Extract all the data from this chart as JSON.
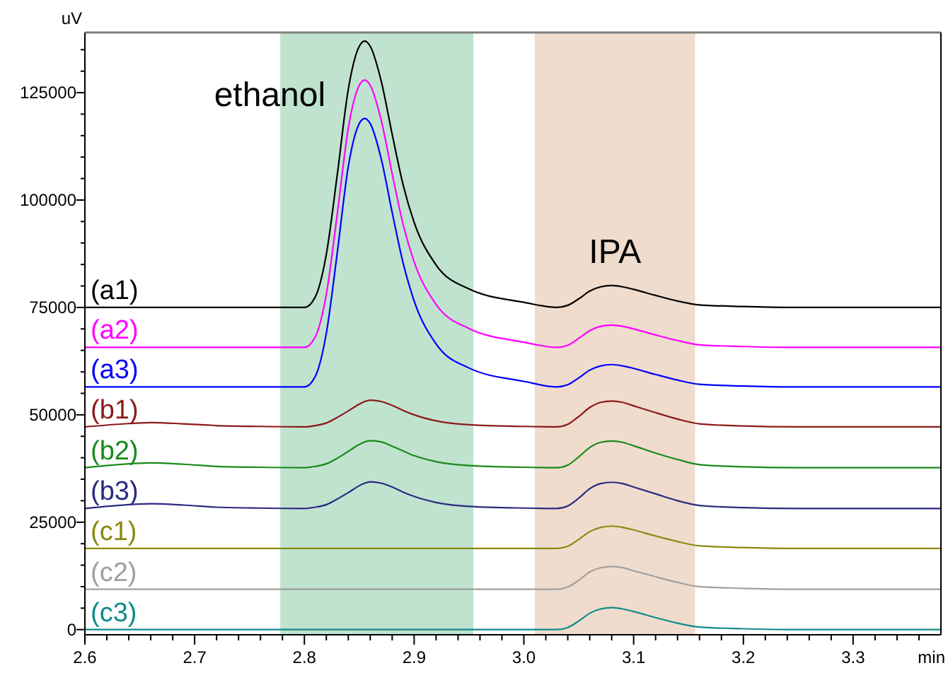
{
  "chart_data": {
    "type": "line",
    "xlabel": "min",
    "ylabel": "uV",
    "xlim": [
      2.6,
      3.38
    ],
    "ylim": [
      -1200,
      139000
    ],
    "xticks": [
      2.6,
      {
        "value": 2.62,
        "label": null
      },
      {
        "value": 2.64,
        "label": null
      },
      {
        "value": 2.66,
        "label": null
      },
      {
        "value": 2.68,
        "label": null
      },
      2.7,
      {
        "value": 2.72,
        "label": null
      },
      {
        "value": 2.74,
        "label": null
      },
      {
        "value": 2.76,
        "label": null
      },
      {
        "value": 2.78,
        "label": null
      },
      2.8,
      {
        "value": 2.82,
        "label": null
      },
      {
        "value": 2.84,
        "label": null
      },
      {
        "value": 2.86,
        "label": null
      },
      {
        "value": 2.88,
        "label": null
      },
      2.9,
      {
        "value": 2.92,
        "label": null
      },
      {
        "value": 2.94,
        "label": null
      },
      {
        "value": 2.96,
        "label": null
      },
      {
        "value": 2.98,
        "label": null
      },
      {
        "value": 3,
        "label": "3.0"
      },
      {
        "value": 3.02,
        "label": null
      },
      {
        "value": 3.04,
        "label": null
      },
      {
        "value": 3.06,
        "label": null
      },
      {
        "value": 3.08,
        "label": null
      },
      3.1,
      {
        "value": 3.12,
        "label": null
      },
      {
        "value": 3.14,
        "label": null
      },
      {
        "value": 3.16,
        "label": null
      },
      {
        "value": 3.18,
        "label": null
      },
      3.2,
      {
        "value": 3.22,
        "label": null
      },
      {
        "value": 3.24,
        "label": null
      },
      {
        "value": 3.26,
        "label": null
      },
      {
        "value": 3.28,
        "label": null
      },
      3.3,
      {
        "value": 3.32,
        "label": null
      },
      {
        "value": 3.34,
        "label": null
      },
      {
        "value": 3.36,
        "label": null
      }
    ],
    "yticks": [
      0,
      {
        "value": 5000,
        "label": null
      },
      {
        "value": 10000,
        "label": null
      },
      {
        "value": 15000,
        "label": null
      },
      {
        "value": 20000,
        "label": null
      },
      25000,
      {
        "value": 30000,
        "label": null
      },
      {
        "value": 35000,
        "label": null
      },
      {
        "value": 40000,
        "label": null
      },
      {
        "value": 45000,
        "label": null
      },
      50000,
      {
        "value": 55000,
        "label": null
      },
      {
        "value": 60000,
        "label": null
      },
      {
        "value": 65000,
        "label": null
      },
      {
        "value": 70000,
        "label": null
      },
      75000,
      {
        "value": 80000,
        "label": null
      },
      {
        "value": 85000,
        "label": null
      },
      {
        "value": 90000,
        "label": null
      },
      {
        "value": 95000,
        "label": null
      },
      100000,
      {
        "value": 105000,
        "label": null
      },
      {
        "value": 110000,
        "label": null
      },
      {
        "value": 115000,
        "label": null
      },
      {
        "value": 120000,
        "label": null
      },
      125000,
      {
        "value": 130000,
        "label": null
      },
      {
        "value": 135000,
        "label": null
      }
    ],
    "grid": false,
    "marker": "none",
    "line_style": "solid",
    "bands": [
      {
        "axis": "x",
        "from": 2.778,
        "to": 2.954,
        "label": "ethanol",
        "color": "#c0e3cf"
      },
      {
        "axis": "x",
        "from": 3.01,
        "to": 3.156,
        "label": "IPA",
        "color": "#efdccd"
      }
    ],
    "x": [
      2.6,
      2.63,
      2.66,
      2.69,
      2.72,
      2.76,
      2.8,
      2.81,
      2.82,
      2.83,
      2.84,
      2.85,
      2.855,
      2.86,
      2.87,
      2.88,
      2.89,
      2.9,
      2.92,
      2.95,
      3.0,
      3.03,
      3.04,
      3.05,
      3.06,
      3.07,
      3.08,
      3.09,
      3.1,
      3.12,
      3.14,
      3.16,
      3.2,
      3.25,
      3.3,
      3.38
    ],
    "series": [
      {
        "name": "(a1)",
        "color": "#000000",
        "values": [
          75000,
          75000,
          75000,
          75000,
          75000,
          75000,
          75000,
          77500,
          87400,
          106000,
          125800,
          135800,
          137000,
          135800,
          127700,
          115300,
          103500,
          94800,
          84900,
          79300,
          76200,
          75000,
          75500,
          77000,
          78800,
          79800,
          80100,
          79800,
          79200,
          77800,
          76500,
          75600,
          75200,
          75000,
          75000,
          75000
        ]
      },
      {
        "name": "(a2)",
        "color": "#ff00ff",
        "values": [
          65700,
          65700,
          65700,
          65700,
          65700,
          65700,
          65700,
          68200,
          78100,
          96800,
          116700,
          126700,
          127900,
          126700,
          118600,
          106100,
          94300,
          85600,
          75700,
          70100,
          66900,
          65700,
          66200,
          67800,
          69600,
          70600,
          70900,
          70600,
          70000,
          68600,
          67300,
          66300,
          65900,
          65700,
          65700,
          65700
        ]
      },
      {
        "name": "(a3)",
        "color": "#0000ff",
        "values": [
          56500,
          56500,
          56500,
          56500,
          56500,
          56500,
          56500,
          59000,
          69000,
          87800,
          107800,
          117800,
          119000,
          117800,
          109600,
          97100,
          85300,
          76500,
          66500,
          60900,
          57800,
          56500,
          57000,
          58600,
          60400,
          61400,
          61700,
          61400,
          60800,
          59400,
          58100,
          57100,
          56700,
          56500,
          56500,
          56500
        ]
      },
      {
        "name": "(b1)",
        "color": "#8b1a1a",
        "values": [
          47200,
          47800,
          48200,
          47900,
          47500,
          47300,
          47200,
          47500,
          48100,
          49400,
          50900,
          52500,
          53100,
          53400,
          53100,
          52200,
          51000,
          50000,
          48600,
          47700,
          47300,
          47200,
          47800,
          49600,
          51700,
          52900,
          53200,
          52900,
          52100,
          50500,
          49000,
          47900,
          47400,
          47200,
          47200,
          47200
        ]
      },
      {
        "name": "(b2)",
        "color": "#1a8a1a",
        "values": [
          37700,
          38400,
          38800,
          38500,
          38000,
          37800,
          37700,
          38000,
          38600,
          39900,
          41500,
          43100,
          43700,
          44000,
          43700,
          42700,
          41600,
          40500,
          39100,
          38200,
          37800,
          37700,
          38300,
          40200,
          42400,
          43600,
          43900,
          43600,
          42800,
          41100,
          39600,
          38400,
          37900,
          37700,
          37700,
          37700
        ]
      },
      {
        "name": "(b3)",
        "color": "#2a2a80",
        "values": [
          28200,
          28900,
          29300,
          29000,
          28500,
          28300,
          28200,
          28500,
          29100,
          30400,
          31900,
          33500,
          34100,
          34400,
          34100,
          33200,
          32000,
          31000,
          29600,
          28700,
          28300,
          28200,
          28800,
          30600,
          32800,
          34000,
          34300,
          34000,
          33200,
          31600,
          30000,
          28900,
          28400,
          28200,
          28200,
          28200
        ]
      },
      {
        "name": "(c1)",
        "color": "#8a8a10",
        "values": [
          18900,
          18900,
          18900,
          18900,
          18900,
          18900,
          18900,
          18900,
          18900,
          18900,
          18900,
          18900,
          18900,
          18900,
          18900,
          18900,
          18900,
          18900,
          18900,
          18900,
          18900,
          18900,
          19400,
          21000,
          22800,
          23800,
          24100,
          23800,
          23200,
          21800,
          20500,
          19500,
          19100,
          18900,
          18900,
          18900
        ]
      },
      {
        "name": "(c2)",
        "color": "#a0a0a0",
        "values": [
          9400,
          9400,
          9400,
          9400,
          9400,
          9400,
          9400,
          9400,
          9400,
          9400,
          9400,
          9400,
          9400,
          9400,
          9400,
          9400,
          9400,
          9400,
          9400,
          9400,
          9400,
          9400,
          9900,
          11500,
          13400,
          14400,
          14700,
          14400,
          13700,
          12300,
          11000,
          10000,
          9600,
          9400,
          9400,
          9400
        ]
      },
      {
        "name": "(c3)",
        "color": "#108a8a",
        "values": [
          0,
          0,
          0,
          0,
          0,
          0,
          0,
          0,
          0,
          0,
          0,
          0,
          0,
          0,
          0,
          0,
          0,
          0,
          0,
          0,
          0,
          0,
          500,
          2000,
          3800,
          4800,
          5100,
          4800,
          4200,
          2800,
          1500,
          600,
          200,
          0,
          0,
          0
        ]
      }
    ]
  }
}
